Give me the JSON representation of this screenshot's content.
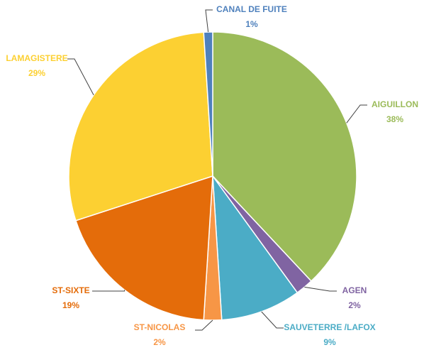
{
  "chart_data": {
    "type": "pie",
    "categories": [
      "AIGUILLON",
      "AGEN",
      "SAUVETERRE  /LAFOX",
      "ST-NICOLAS",
      "ST-SIXTE",
      "LAMAGISTERE",
      "CANAL DE FUITE"
    ],
    "values": [
      38,
      2,
      9,
      2,
      19,
      29,
      1
    ],
    "value_labels": [
      "38%",
      "2%",
      "9%",
      "2%",
      "19%",
      "29%",
      "1%"
    ],
    "colors": [
      "#9bbb59",
      "#8064a2",
      "#4bacc6",
      "#f79646",
      "#e46c0a",
      "#fcd032",
      "#4f81bd"
    ]
  }
}
